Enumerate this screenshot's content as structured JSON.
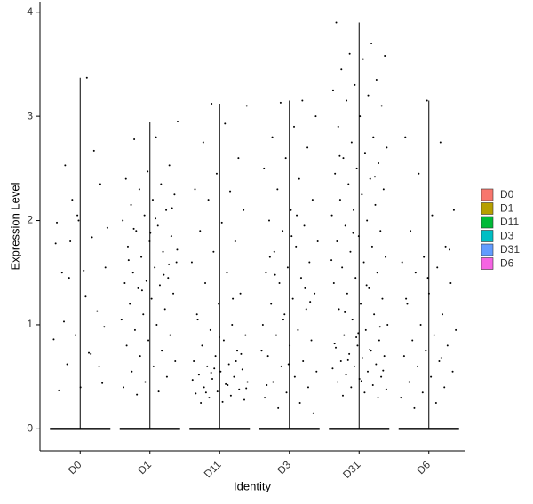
{
  "chart_data": {
    "type": "violin",
    "x_label": "Identity",
    "y_label": "Expression Level",
    "categories": [
      "D0",
      "D1",
      "D11",
      "D3",
      "D31",
      "D6"
    ],
    "ylim": [
      -0.21,
      4.1
    ],
    "yticks": [
      0,
      1,
      2,
      3,
      4
    ],
    "series": [
      {
        "name": "D0",
        "color": "#F8766D",
        "values": [
          0,
          3.37,
          2.53,
          2.35,
          2.0,
          1.98,
          1.84,
          1.8,
          1.55,
          1.52,
          1.5,
          1.13,
          0.9,
          0.86,
          0.73,
          0.62,
          0.44,
          0.4,
          0.37,
          2.67,
          2.2,
          1.93,
          1.27,
          1.03,
          0.6,
          2.05,
          1.78,
          0.72,
          1.45,
          0.98
        ]
      },
      {
        "name": "D1",
        "color": "#B79F00",
        "values": [
          0,
          2.95,
          2.8,
          2.78,
          2.53,
          2.47,
          2.4,
          2.35,
          2.3,
          2.25,
          2.2,
          2.15,
          2.1,
          2.05,
          2.0,
          1.95,
          1.9,
          1.85,
          1.8,
          1.75,
          1.7,
          1.65,
          1.6,
          1.55,
          1.5,
          1.45,
          1.42,
          1.4,
          1.38,
          1.35,
          1.3,
          1.25,
          1.2,
          1.15,
          1.1,
          1.05,
          1.0,
          0.95,
          0.9,
          0.85,
          0.8,
          0.75,
          0.7,
          0.65,
          0.6,
          0.55,
          0.5,
          0.45,
          0.4,
          0.36,
          0.33,
          2.12,
          1.88,
          1.62,
          1.48,
          1.33,
          1.72,
          2.02,
          1.92,
          1.58
        ]
      },
      {
        "name": "D11",
        "color": "#00BA38",
        "values": [
          0,
          3.12,
          3.1,
          2.93,
          2.75,
          2.6,
          2.45,
          2.3,
          2.28,
          2.2,
          2.1,
          1.98,
          1.9,
          1.8,
          1.7,
          1.6,
          1.5,
          1.4,
          1.3,
          1.2,
          1.1,
          1.0,
          0.95,
          0.9,
          0.85,
          0.8,
          0.75,
          0.7,
          0.65,
          0.62,
          0.6,
          0.57,
          0.55,
          0.52,
          0.5,
          0.48,
          0.45,
          0.43,
          0.4,
          0.38,
          0.36,
          0.34,
          0.32,
          0.3,
          0.28,
          0.26,
          0.25,
          0.65,
          0.58,
          0.47,
          0.42,
          0.35,
          0.72,
          0.88,
          1.05,
          1.25,
          0.54,
          0.39
        ]
      },
      {
        "name": "D3",
        "color": "#00BFC4",
        "values": [
          0,
          3.15,
          3.13,
          3.0,
          2.9,
          2.8,
          2.7,
          2.6,
          2.5,
          2.4,
          2.3,
          2.2,
          2.1,
          2.0,
          1.95,
          1.9,
          1.8,
          1.75,
          1.7,
          1.6,
          1.55,
          1.5,
          1.45,
          1.4,
          1.3,
          1.25,
          1.2,
          1.15,
          1.1,
          1.0,
          0.95,
          0.9,
          0.85,
          0.8,
          0.7,
          0.65,
          0.6,
          0.55,
          0.5,
          0.45,
          0.4,
          0.35,
          0.3,
          0.25,
          0.2,
          0.15,
          1.85,
          1.65,
          1.35,
          1.05,
          0.75,
          2.05,
          1.48,
          1.22,
          0.62,
          0.42
        ]
      },
      {
        "name": "D31",
        "color": "#619CFF",
        "values": [
          0,
          3.9,
          3.7,
          3.6,
          3.58,
          3.55,
          3.45,
          3.35,
          3.3,
          3.25,
          3.2,
          3.15,
          3.1,
          3.0,
          2.9,
          2.8,
          2.75,
          2.7,
          2.65,
          2.6,
          2.55,
          2.5,
          2.45,
          2.4,
          2.35,
          2.3,
          2.25,
          2.2,
          2.15,
          2.1,
          2.05,
          2.0,
          1.95,
          1.9,
          1.85,
          1.8,
          1.75,
          1.7,
          1.65,
          1.6,
          1.55,
          1.5,
          1.45,
          1.4,
          1.35,
          1.3,
          1.25,
          1.2,
          1.15,
          1.1,
          1.05,
          1.0,
          0.95,
          0.9,
          0.85,
          0.8,
          0.78,
          0.75,
          0.72,
          0.7,
          0.68,
          0.65,
          0.62,
          0.6,
          0.58,
          0.55,
          0.52,
          0.5,
          0.48,
          0.45,
          0.42,
          0.4,
          0.38,
          0.35,
          0.32,
          0.3,
          0.88,
          0.82,
          0.76,
          0.66,
          0.56,
          0.46,
          2.62,
          2.42,
          1.88,
          1.62,
          1.38,
          1.12,
          0.98,
          0.92
        ]
      },
      {
        "name": "D6",
        "color": "#F564E3",
        "values": [
          0,
          3.15,
          2.8,
          2.75,
          2.45,
          2.1,
          2.05,
          1.9,
          1.75,
          1.65,
          1.6,
          1.55,
          1.5,
          1.4,
          1.3,
          1.2,
          1.1,
          1.0,
          0.95,
          0.9,
          0.85,
          0.8,
          0.75,
          0.7,
          0.65,
          0.6,
          0.55,
          0.5,
          0.45,
          0.4,
          0.35,
          0.3,
          0.25,
          0.2,
          1.72,
          1.45,
          1.25,
          0.68
        ]
      }
    ]
  }
}
